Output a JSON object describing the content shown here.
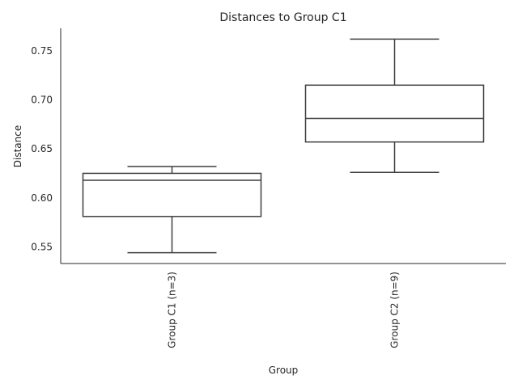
{
  "chart_data": {
    "type": "box",
    "title": "Distances to Group C1",
    "xlabel": "Group",
    "ylabel": "Distance",
    "ylim": [
      0.533,
      0.773
    ],
    "yticks": [
      "0.55",
      "0.60",
      "0.65",
      "0.70",
      "0.75"
    ],
    "grid": false,
    "categories": [
      "Group C1 (n=3)",
      "Group C2 (n=9)"
    ],
    "boxes": [
      {
        "category": "Group C1 (n=3)",
        "whisker_low": 0.544,
        "q1": 0.581,
        "median": 0.618,
        "q3": 0.625,
        "whisker_high": 0.632
      },
      {
        "category": "Group C2 (n=9)",
        "whisker_low": 0.626,
        "q1": 0.657,
        "median": 0.681,
        "q3": 0.715,
        "whisker_high": 0.762
      }
    ]
  },
  "colors": {
    "box_edge": "#3f3f3f",
    "box_fill": "#ffffff",
    "text": "#262626"
  }
}
